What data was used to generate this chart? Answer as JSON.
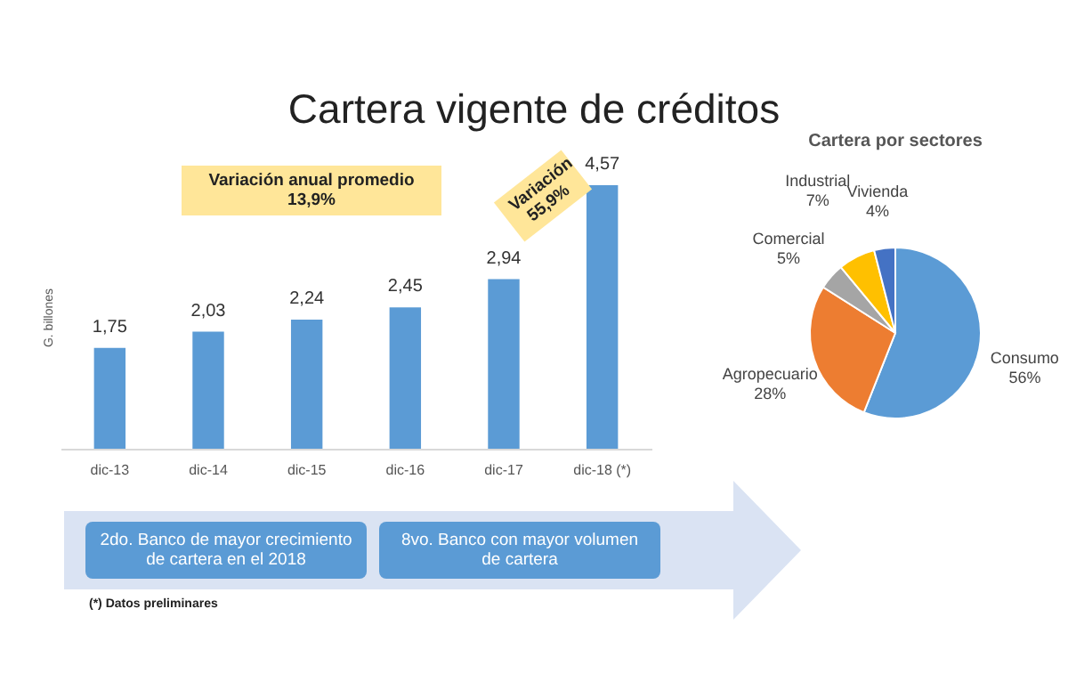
{
  "chart_data": [
    {
      "type": "bar",
      "title": "Cartera vigente de créditos",
      "ylabel": "G. billones",
      "categories": [
        "dic-13",
        "dic-14",
        "dic-15",
        "dic-16",
        "dic-17",
        "dic-18 (*)"
      ],
      "values": [
        1.75,
        2.03,
        2.24,
        2.45,
        2.94,
        4.57
      ],
      "color": "#5b9bd5",
      "value_labels": [
        "1,75",
        "2,03",
        "2,24",
        "2,45",
        "2,94",
        "4,57"
      ],
      "annotations": [
        "Variación anual promedio 13,9%",
        "Variación 55,9%",
        "2do. Banco de mayor crecimiento de cartera en el 2018",
        "8vo. Banco con mayor volumen de cartera",
        "(*) Datos preliminares"
      ]
    },
    {
      "type": "pie",
      "title": "Cartera por sectores",
      "categories": [
        "Consumo",
        "Agropecuario",
        "Comercial",
        "Industrial",
        "Vivienda"
      ],
      "values": [
        56,
        28,
        5,
        7,
        4
      ],
      "colors": [
        "#5b9bd5",
        "#ed7d31",
        "#a5a5a5",
        "#ffc000",
        "#4472c4"
      ],
      "value_labels": [
        "56%",
        "28%",
        "5%",
        "7%",
        "4%"
      ]
    }
  ]
}
